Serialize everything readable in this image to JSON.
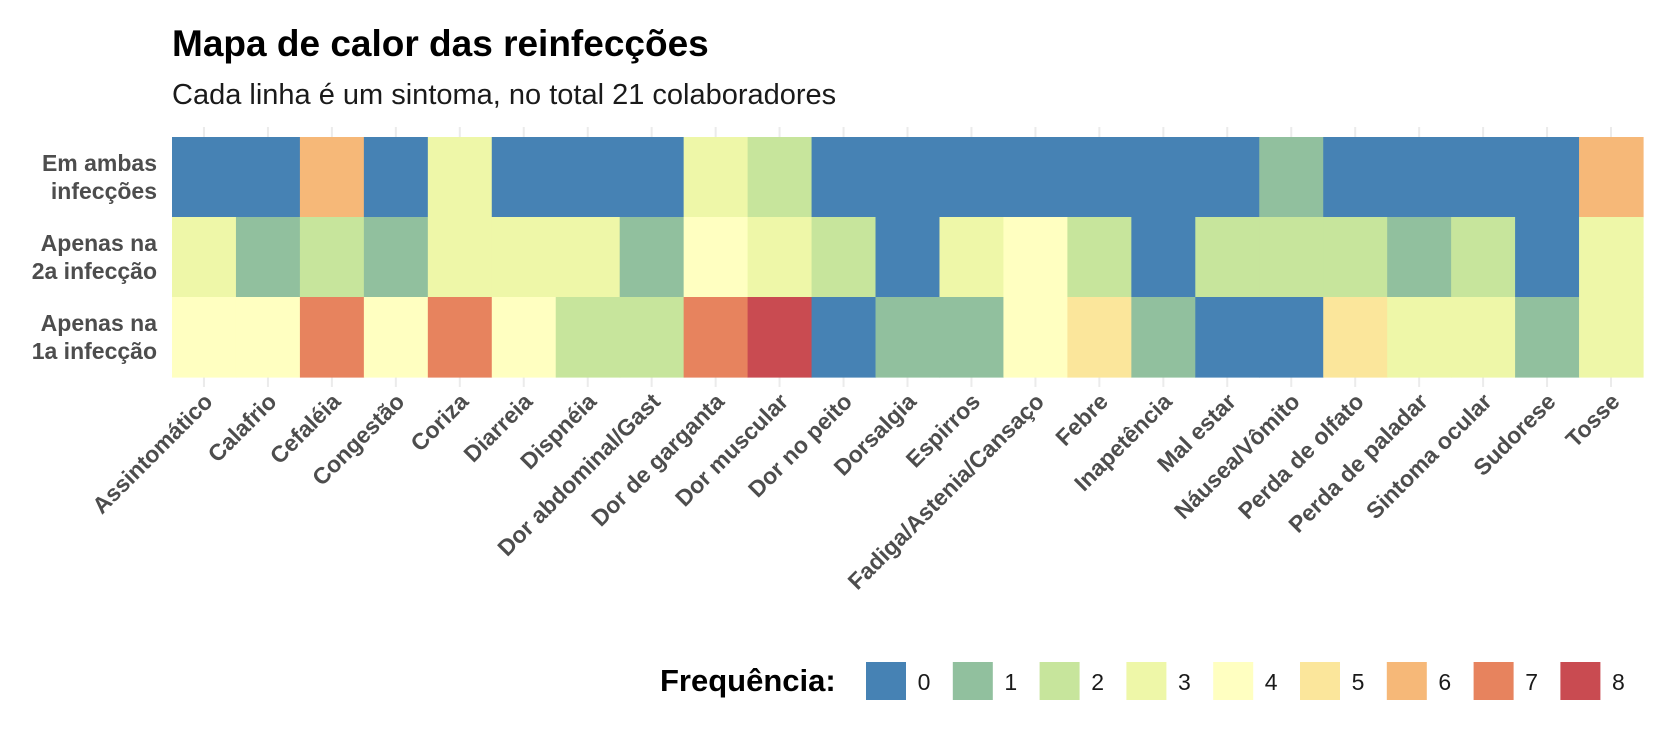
{
  "chart_data": {
    "type": "heatmap",
    "title": "Mapa de calor das reinfecções",
    "subtitle": "Cada linha é um sintoma, no total 21 colaboradores",
    "xlabel": "",
    "ylabel": "",
    "categories": [
      "Assintomático",
      "Calafrio",
      "Cefaléia",
      "Congestão",
      "Coriza",
      "Diarreia",
      "Dispnéia",
      "Dor abdominal/Gast",
      "Dor de garganta",
      "Dor muscular",
      "Dor no peito",
      "Dorsalgia",
      "Espirros",
      "Fadiga/Astenia/Cansaço",
      "Febre",
      "Inapetência",
      "Mal estar",
      "Náusea/Vômito",
      "Perda de olfato",
      "Perda de paladar",
      "Sintoma ocular",
      "Sudorese",
      "Tosse"
    ],
    "rows": [
      {
        "label_lines": [
          "Em ambas",
          "infecções"
        ],
        "values": [
          0,
          0,
          6,
          0,
          3,
          0,
          0,
          0,
          3,
          2,
          0,
          0,
          0,
          0,
          0,
          0,
          0,
          1,
          0,
          0,
          0,
          0,
          6
        ]
      },
      {
        "label_lines": [
          "Apenas na",
          "2a infecção"
        ],
        "values": [
          3,
          1,
          2,
          1,
          3,
          3,
          3,
          1,
          4,
          3,
          2,
          0,
          3,
          4,
          2,
          0,
          2,
          2,
          2,
          1,
          2,
          0,
          3
        ]
      },
      {
        "label_lines": [
          "Apenas na",
          "1a infecção"
        ],
        "values": [
          4,
          4,
          7,
          4,
          7,
          4,
          2,
          2,
          7,
          8,
          0,
          1,
          1,
          4,
          5,
          1,
          0,
          0,
          5,
          3,
          3,
          1,
          3
        ]
      }
    ],
    "legend": {
      "title": "Frequência:",
      "position": "bottom-right",
      "levels": [
        "0",
        "1",
        "2",
        "3",
        "4",
        "5",
        "6",
        "7",
        "8"
      ]
    },
    "colors": [
      "#4682b4",
      "#91c09e",
      "#c7e59c",
      "#eef7a8",
      "#ffffc1",
      "#fbe69b",
      "#f6b878",
      "#e7835e",
      "#c94b51"
    ],
    "grid": true
  }
}
